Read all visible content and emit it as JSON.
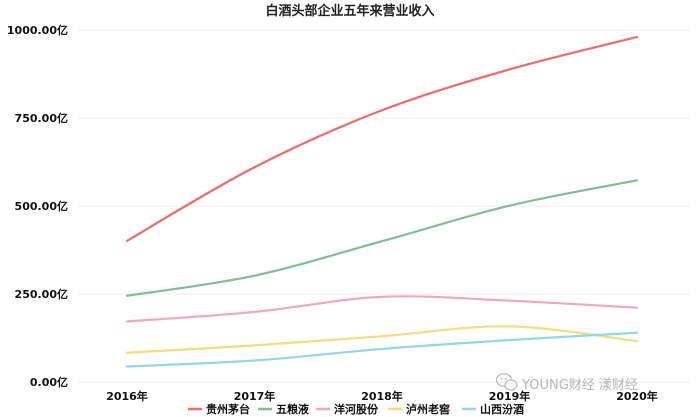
{
  "chart_data": {
    "type": "line",
    "title": "白酒头部企业五年来营业收入",
    "x": [
      "2016年",
      "2017年",
      "2018年",
      "2019年",
      "2020年"
    ],
    "y_ticks": [
      "0.00亿",
      "250.00亿",
      "500.00亿",
      "750.00亿",
      "1000.00亿"
    ],
    "ylim": [
      0,
      1000
    ],
    "grid": true,
    "legend_position": "bottom",
    "series": [
      {
        "name": "贵州茅台",
        "color": "#ef6b64",
        "values": [
          401,
          610,
          772,
          888,
          980
        ]
      },
      {
        "name": "五粮液",
        "color": "#7ec08f",
        "values": [
          245,
          302,
          400,
          501,
          573
        ]
      },
      {
        "name": "洋河股份",
        "color": "#f4a6bf",
        "values": [
          172,
          199,
          242,
          231,
          211
        ]
      },
      {
        "name": "泸州老窖",
        "color": "#f6dc7a",
        "values": [
          83,
          104,
          130,
          158,
          116
        ]
      },
      {
        "name": "山西汾酒",
        "color": "#8fd8ea",
        "values": [
          44,
          61,
          94,
          119,
          140
        ]
      }
    ]
  },
  "watermark": "YOUNG财经 漾财经"
}
